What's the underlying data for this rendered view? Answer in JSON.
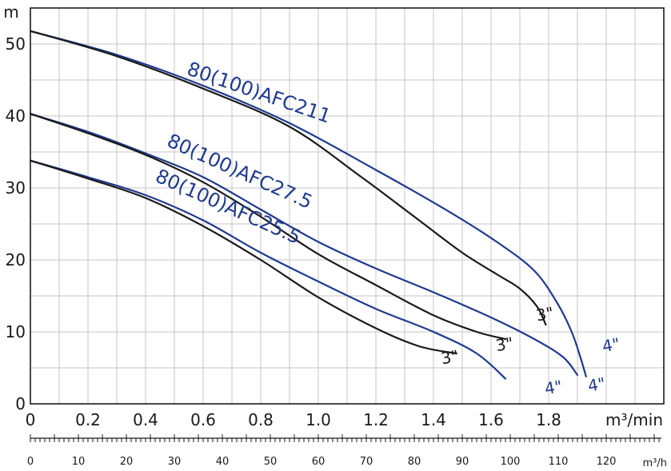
{
  "chart_data": {
    "type": "line",
    "title": "",
    "xlabel": "m³/min",
    "ylabel": "m",
    "secondary_xlabel": "m³/h",
    "xlim": [
      0,
      2.2
    ],
    "ylim": [
      0,
      55
    ],
    "x_ticks": [
      "0",
      "0.2",
      "0.4",
      "0.6",
      "0.8",
      "1.0",
      "1.2",
      "1.4",
      "1.6",
      "1.8"
    ],
    "y_ticks": [
      "0",
      "10",
      "20",
      "30",
      "40",
      "50"
    ],
    "secondary_x_ticks": [
      "0",
      "10",
      "20",
      "30",
      "40",
      "50",
      "60",
      "70",
      "80",
      "90",
      "100",
      "110",
      "120"
    ],
    "grid": true,
    "colors": {
      "blue": "#1f3a8f",
      "black": "#1a1a1a",
      "grid": "#c4c4c4"
    },
    "models": [
      {
        "label": "80(100)AFC211",
        "label_x": 0.54,
        "label_y": 45.8,
        "angle": 19
      },
      {
        "label": "80(100)AFC27.5",
        "label_x": 0.47,
        "label_y": 35.9,
        "angle": 24
      },
      {
        "label": "80(100)AFC25.5",
        "label_x": 0.43,
        "label_y": 31.0,
        "angle": 24
      }
    ],
    "series": [
      {
        "model": "80(100)AFC211",
        "pipe": "4\"",
        "color": "blue",
        "x": [
          0,
          0.3,
          0.6,
          0.9,
          1.2,
          1.45,
          1.62,
          1.75,
          1.83,
          1.88,
          1.91,
          1.93
        ],
        "y": [
          51.8,
          48.5,
          44.2,
          39.0,
          32.5,
          26.8,
          22.5,
          18.5,
          14.0,
          10.0,
          6.5,
          3.8
        ]
      },
      {
        "model": "80(100)AFC211",
        "pipe": "3\"",
        "color": "black",
        "x": [
          0,
          0.3,
          0.6,
          0.9,
          1.15,
          1.35,
          1.5,
          1.62,
          1.7,
          1.76,
          1.79
        ],
        "y": [
          51.8,
          48.3,
          43.8,
          38.5,
          31.5,
          25.5,
          21.0,
          18.0,
          16.0,
          13.5,
          11.0
        ]
      },
      {
        "model": "80(100)AFC27.5",
        "pipe": "4\"",
        "color": "blue",
        "x": [
          0,
          0.2,
          0.4,
          0.6,
          0.8,
          1.0,
          1.2,
          1.4,
          1.6,
          1.75,
          1.85,
          1.9
        ],
        "y": [
          40.3,
          37.8,
          34.8,
          31.5,
          27.0,
          22.5,
          18.8,
          15.5,
          12.0,
          9.0,
          6.5,
          4.0
        ]
      },
      {
        "model": "80(100)AFC27.5",
        "pipe": "3\"",
        "color": "black",
        "x": [
          0,
          0.2,
          0.4,
          0.6,
          0.8,
          1.0,
          1.2,
          1.4,
          1.55,
          1.65
        ],
        "y": [
          40.3,
          37.6,
          34.6,
          30.8,
          26.0,
          20.8,
          16.5,
          12.3,
          10.0,
          9.0
        ]
      },
      {
        "model": "80(100)AFC25.5",
        "pipe": "4\"",
        "color": "blue",
        "x": [
          0,
          0.2,
          0.4,
          0.6,
          0.8,
          1.0,
          1.2,
          1.4,
          1.55,
          1.65
        ],
        "y": [
          33.8,
          31.5,
          29.0,
          25.5,
          21.0,
          17.0,
          13.2,
          10.0,
          7.0,
          3.5
        ]
      },
      {
        "model": "80(100)AFC25.5",
        "pipe": "3\"",
        "color": "black",
        "x": [
          0,
          0.2,
          0.4,
          0.6,
          0.8,
          1.0,
          1.2,
          1.35,
          1.48
        ],
        "y": [
          33.8,
          31.3,
          28.6,
          24.7,
          20.0,
          14.8,
          10.5,
          8.0,
          7.0
        ]
      }
    ],
    "pipe_labels": [
      {
        "text": "3\"",
        "color": "black",
        "x": 1.76,
        "y": 11.5
      },
      {
        "text": "4\"",
        "color": "blue",
        "x": 1.99,
        "y": 7.2
      },
      {
        "text": "3\"",
        "color": "black",
        "x": 1.62,
        "y": 7.3
      },
      {
        "text": "4\"",
        "color": "blue",
        "x": 1.94,
        "y": 1.7
      },
      {
        "text": "3\"",
        "color": "black",
        "x": 1.43,
        "y": 5.5
      },
      {
        "text": "4\"",
        "color": "blue",
        "x": 1.79,
        "y": 1.3
      }
    ]
  }
}
